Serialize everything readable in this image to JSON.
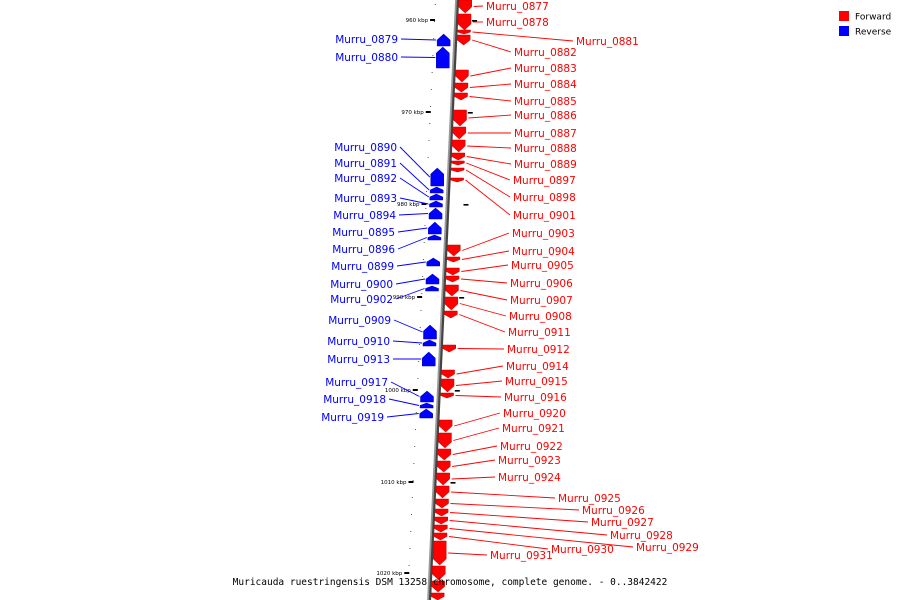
{
  "caption": "Muricauda ruestringensis DSM 13258 chromosome, complete genome. - 0..3842422",
  "legend": [
    {
      "label": "Forward",
      "color": "#ff0000"
    },
    {
      "label": "Reverse",
      "color": "#0000ff"
    }
  ],
  "colors": {
    "forward": "#ff0000",
    "reverse": "#0000ff",
    "backbone": "#999999"
  },
  "ticks": [
    "960 kbp",
    "970 kbp",
    "980 kbp",
    "990 kbp",
    "1000 kbp",
    "1010 kbp",
    "1020 kbp"
  ],
  "forward_genes": [
    "Murru_0877",
    "Murru_0878",
    "Murru_0881",
    "Murru_0882",
    "Murru_0883",
    "Murru_0884",
    "Murru_0885",
    "Murru_0886",
    "Murru_0887",
    "Murru_0888",
    "Murru_0889",
    "Murru_0897",
    "Murru_0898",
    "Murru_0901",
    "Murru_0903",
    "Murru_0904",
    "Murru_0905",
    "Murru_0906",
    "Murru_0907",
    "Murru_0908",
    "Murru_0911",
    "Murru_0912",
    "Murru_0914",
    "Murru_0915",
    "Murru_0916",
    "Murru_0920",
    "Murru_0921",
    "Murru_0922",
    "Murru_0923",
    "Murru_0924",
    "Murru_0925",
    "Murru_0926",
    "Murru_0927",
    "Murru_0928",
    "Murru_0929",
    "Murru_0930",
    "Murru_0931"
  ],
  "reverse_genes": [
    "Murru_0879",
    "Murru_0880",
    "Murru_0890",
    "Murru_0891",
    "Murru_0892",
    "Murru_0893",
    "Murru_0894",
    "Murru_0895",
    "Murru_0896",
    "Murru_0899",
    "Murru_0900",
    "Murru_0902",
    "Murru_0909",
    "Murru_0910",
    "Murru_0913",
    "Murru_0917",
    "Murru_0918",
    "Murru_0919"
  ]
}
